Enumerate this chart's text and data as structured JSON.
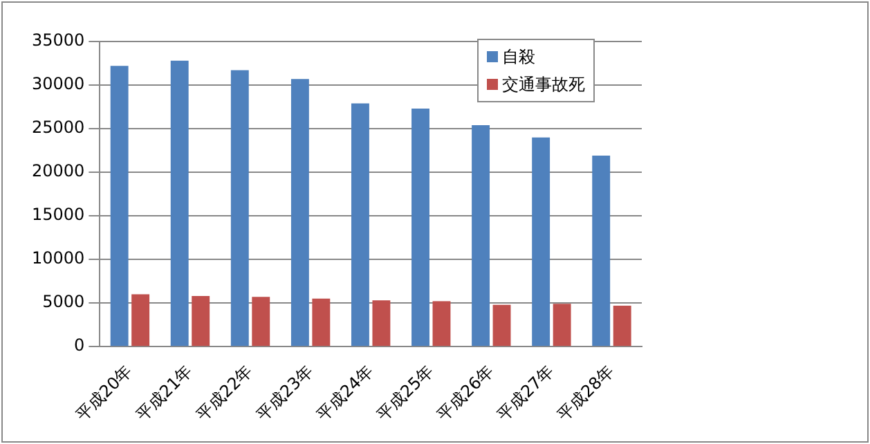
{
  "chart_data": {
    "type": "bar",
    "categories": [
      "平成20年",
      "平成21年",
      "平成22年",
      "平成23年",
      "平成24年",
      "平成25年",
      "平成26年",
      "平成27年",
      "平成28年"
    ],
    "series": [
      {
        "name": "自殺",
        "color": "#4f81bd",
        "values": [
          32200,
          32800,
          31700,
          30700,
          27900,
          27300,
          25400,
          24000,
          21900
        ]
      },
      {
        "name": "交通事故死",
        "color": "#c0504d",
        "values": [
          6000,
          5800,
          5700,
          5500,
          5300,
          5200,
          4800,
          4900,
          4700
        ]
      }
    ],
    "ylim": [
      0,
      35000
    ],
    "yticks": [
      0,
      5000,
      10000,
      15000,
      20000,
      25000,
      30000,
      35000
    ],
    "grid": "y",
    "legend": "top right"
  }
}
